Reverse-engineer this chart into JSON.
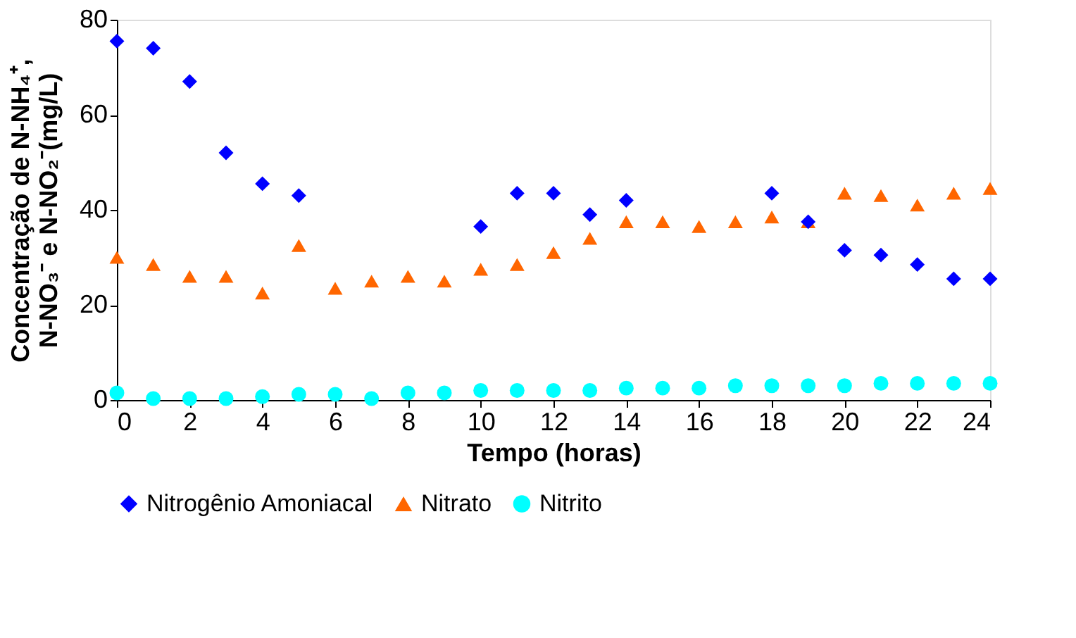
{
  "chart_data": {
    "type": "scatter",
    "xlabel": "Tempo (horas)",
    "ylabel": "Concentração de N-NH₄⁺, N-NO₃⁻ e N-NO₂⁻(mg/L)",
    "x": [
      0,
      1,
      2,
      3,
      4,
      5,
      6,
      7,
      8,
      9,
      10,
      11,
      12,
      13,
      14,
      15,
      16,
      17,
      18,
      19,
      20,
      21,
      22,
      23,
      24
    ],
    "xlim": [
      0,
      24
    ],
    "xticks": [
      0,
      2,
      4,
      6,
      8,
      10,
      12,
      14,
      16,
      18,
      20,
      22,
      24
    ],
    "ylim": [
      0,
      80
    ],
    "yticks": [
      0,
      20,
      40,
      60,
      80
    ],
    "grid": false,
    "legend": "bottom",
    "series": [
      {
        "name": "Nitrogênio Amoniacal",
        "color": "#0000ff",
        "marker": "diamond",
        "values": [
          75.5,
          74,
          67,
          52,
          45.5,
          43,
          null,
          null,
          null,
          null,
          36.5,
          43.5,
          43.5,
          39,
          42,
          null,
          null,
          null,
          43.5,
          37.5,
          31.5,
          30.5,
          28.5,
          25.5,
          25.5
        ]
      },
      {
        "name": "Nitrato",
        "color": "#ff6600",
        "marker": "triangle",
        "values": [
          30,
          28.5,
          26,
          26,
          22.5,
          32.5,
          23.5,
          25,
          26,
          25,
          27.5,
          28.5,
          31,
          34,
          37.5,
          37.5,
          36.5,
          37.5,
          38.5,
          37.5,
          43.5,
          43,
          41,
          43.5,
          44.5
        ]
      },
      {
        "name": "Nitrito",
        "color": "#00ffff",
        "marker": "circle",
        "values": [
          1.5,
          0.3,
          0.3,
          0.3,
          0.7,
          1.2,
          1.2,
          0.3,
          1.5,
          1.5,
          2,
          2,
          2,
          2,
          2.5,
          2.5,
          2.5,
          3,
          3,
          3,
          3,
          3.5,
          3.5,
          3.5,
          3.5
        ]
      }
    ]
  }
}
